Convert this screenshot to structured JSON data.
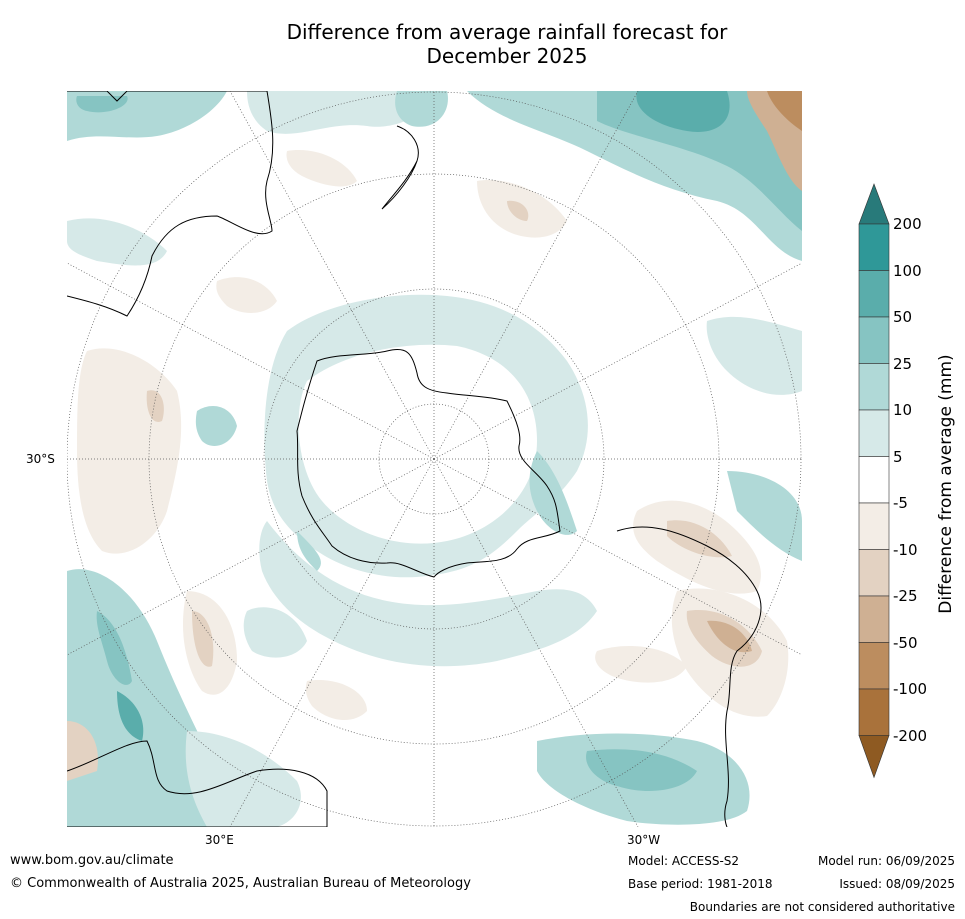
{
  "title": {
    "line1": "Difference from average rainfall forecast for",
    "line2": "December 2025"
  },
  "map": {
    "projection": "south-polar stereographic",
    "labels": {
      "lat": "30°S",
      "lon_east": "30°E",
      "lon_west": "30°W"
    }
  },
  "colorbar": {
    "label": "Difference from average (mm)",
    "ticks": [
      "200",
      "100",
      "50",
      "25",
      "10",
      "5",
      "-5",
      "-10",
      "-25",
      "-50",
      "-100",
      "-200"
    ],
    "colors": [
      "#287a7a",
      "#2f9898",
      "#5aadab",
      "#86c4c2",
      "#b0d9d7",
      "#d6e9e8",
      "#ffffff",
      "#f3ede6",
      "#e3d2c2",
      "#cfb093",
      "#bc8d5f",
      "#a9723b",
      "#8e5a22"
    ]
  },
  "footer": {
    "website": "www.bom.gov.au/climate",
    "copyright": "© Commonwealth of Australia 2025, Australian Bureau of Meteorology",
    "model": "Model: ACCESS-S2",
    "base_period": "Base period: 1981-2018",
    "model_run": "Model run: 06/09/2025",
    "issued": "Issued: 08/09/2025",
    "disclaimer": "Boundaries are not considered authoritative"
  }
}
